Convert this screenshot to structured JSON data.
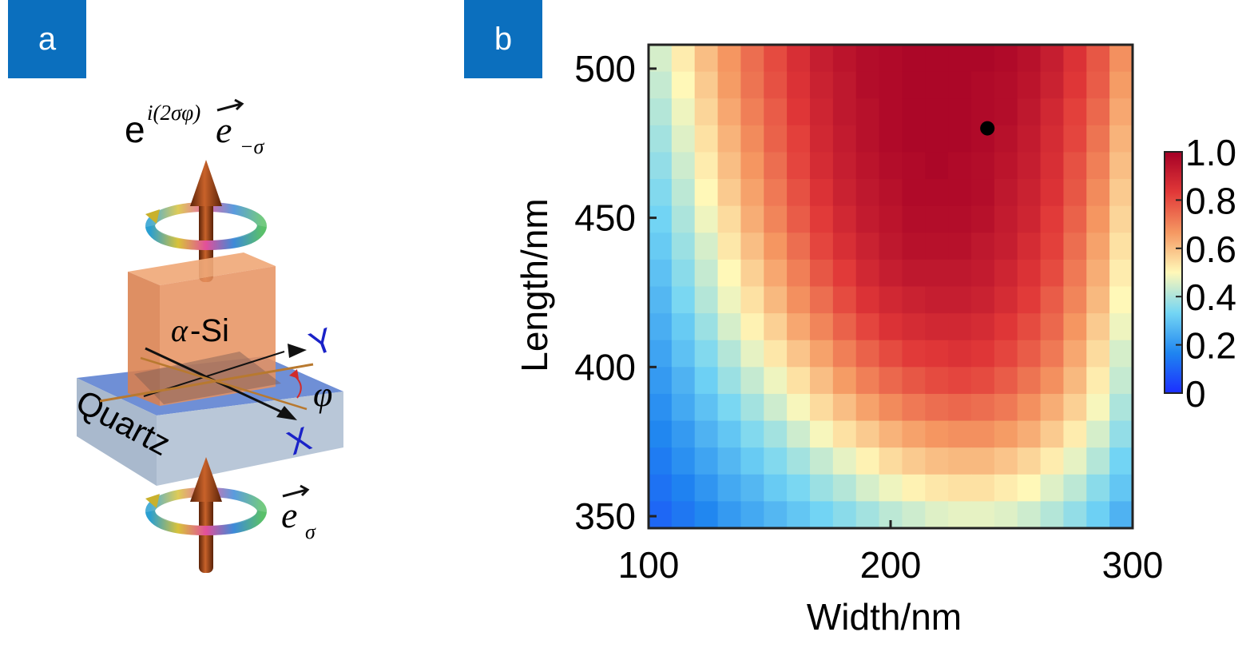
{
  "panels": {
    "a": {
      "label": "a"
    },
    "b": {
      "label": "b"
    }
  },
  "diagram": {
    "output_field_base": "e",
    "output_field_exponent": "i(2σφ)",
    "output_field_vector": "e",
    "output_field_subscript": "−σ",
    "input_field_vector": "e",
    "input_field_subscript": "σ",
    "pillar_label_greek": "α",
    "pillar_label_text": "-Si",
    "substrate_label": "Quartz",
    "axis_y_label": "Y",
    "axis_x_label": "X",
    "angle_label": "φ",
    "colors": {
      "pillar": "#e6915f",
      "substrate_top": "#6f8fd6",
      "substrate_side": "#a9b9cd",
      "arrow": "#8b3d16",
      "axes": "#1a22c8"
    }
  },
  "chart_data": {
    "type": "heatmap",
    "xlabel": "Width/nm",
    "ylabel": "Length/nm",
    "xlim": [
      100,
      300
    ],
    "ylim": [
      346,
      508
    ],
    "xticks": [
      100,
      200,
      300
    ],
    "yticks": [
      350,
      400,
      450,
      500
    ],
    "x_step": 10,
    "y_step": 10,
    "colorbar": {
      "min": 0,
      "max": 1.0,
      "ticks": [
        "0",
        "0.2",
        "0.4",
        "0.6",
        "0.8",
        "1.0"
      ],
      "position": "right"
    },
    "colormap": [
      "#1c2eff",
      "#1f85f0",
      "#74d6f4",
      "#fff8b8",
      "#f59862",
      "#e13838",
      "#a50026"
    ],
    "marker": {
      "x": 240,
      "y": 480
    },
    "rows_from_top": [
      [
        0.45,
        0.52,
        0.6,
        0.67,
        0.74,
        0.8,
        0.86,
        0.91,
        0.94,
        0.96,
        0.97,
        0.98,
        0.98,
        0.98,
        0.98,
        0.97,
        0.95,
        0.91,
        0.85,
        0.78,
        0.68
      ],
      [
        0.43,
        0.5,
        0.58,
        0.66,
        0.73,
        0.79,
        0.85,
        0.9,
        0.93,
        0.96,
        0.97,
        0.98,
        0.98,
        0.98,
        0.97,
        0.96,
        0.94,
        0.9,
        0.84,
        0.77,
        0.66
      ],
      [
        0.41,
        0.48,
        0.56,
        0.64,
        0.71,
        0.77,
        0.84,
        0.89,
        0.93,
        0.95,
        0.97,
        0.98,
        0.98,
        0.98,
        0.97,
        0.96,
        0.93,
        0.88,
        0.82,
        0.75,
        0.64
      ],
      [
        0.39,
        0.46,
        0.54,
        0.62,
        0.69,
        0.76,
        0.82,
        0.88,
        0.92,
        0.95,
        0.97,
        0.98,
        0.98,
        0.98,
        0.97,
        0.95,
        0.92,
        0.87,
        0.81,
        0.73,
        0.62
      ],
      [
        0.37,
        0.44,
        0.52,
        0.6,
        0.67,
        0.74,
        0.81,
        0.87,
        0.91,
        0.94,
        0.96,
        0.97,
        0.98,
        0.97,
        0.96,
        0.94,
        0.91,
        0.86,
        0.79,
        0.71,
        0.6
      ],
      [
        0.35,
        0.42,
        0.5,
        0.58,
        0.65,
        0.72,
        0.79,
        0.85,
        0.9,
        0.93,
        0.95,
        0.97,
        0.97,
        0.97,
        0.96,
        0.93,
        0.9,
        0.85,
        0.78,
        0.69,
        0.58
      ],
      [
        0.33,
        0.4,
        0.48,
        0.55,
        0.63,
        0.7,
        0.77,
        0.83,
        0.88,
        0.92,
        0.94,
        0.96,
        0.96,
        0.96,
        0.95,
        0.92,
        0.89,
        0.83,
        0.76,
        0.67,
        0.56
      ],
      [
        0.31,
        0.38,
        0.45,
        0.53,
        0.6,
        0.67,
        0.74,
        0.81,
        0.86,
        0.9,
        0.93,
        0.95,
        0.95,
        0.95,
        0.93,
        0.91,
        0.87,
        0.82,
        0.74,
        0.65,
        0.54
      ],
      [
        0.29,
        0.36,
        0.43,
        0.5,
        0.57,
        0.64,
        0.71,
        0.78,
        0.83,
        0.88,
        0.91,
        0.93,
        0.93,
        0.93,
        0.92,
        0.89,
        0.85,
        0.8,
        0.72,
        0.63,
        0.52
      ],
      [
        0.27,
        0.34,
        0.41,
        0.48,
        0.54,
        0.61,
        0.68,
        0.74,
        0.8,
        0.85,
        0.88,
        0.9,
        0.91,
        0.91,
        0.9,
        0.87,
        0.83,
        0.77,
        0.7,
        0.61,
        0.5
      ],
      [
        0.25,
        0.31,
        0.38,
        0.45,
        0.51,
        0.57,
        0.64,
        0.7,
        0.76,
        0.81,
        0.85,
        0.87,
        0.88,
        0.88,
        0.87,
        0.84,
        0.8,
        0.75,
        0.67,
        0.58,
        0.48
      ],
      [
        0.23,
        0.29,
        0.35,
        0.41,
        0.47,
        0.53,
        0.59,
        0.65,
        0.71,
        0.76,
        0.8,
        0.83,
        0.84,
        0.85,
        0.84,
        0.81,
        0.77,
        0.72,
        0.64,
        0.55,
        0.45
      ],
      [
        0.21,
        0.26,
        0.32,
        0.38,
        0.43,
        0.48,
        0.54,
        0.6,
        0.66,
        0.71,
        0.75,
        0.78,
        0.8,
        0.81,
        0.8,
        0.77,
        0.73,
        0.68,
        0.61,
        0.52,
        0.43
      ],
      [
        0.19,
        0.24,
        0.29,
        0.34,
        0.39,
        0.44,
        0.49,
        0.55,
        0.6,
        0.65,
        0.69,
        0.72,
        0.74,
        0.75,
        0.74,
        0.72,
        0.68,
        0.63,
        0.57,
        0.49,
        0.4
      ],
      [
        0.17,
        0.21,
        0.26,
        0.3,
        0.35,
        0.39,
        0.44,
        0.49,
        0.54,
        0.58,
        0.62,
        0.65,
        0.67,
        0.68,
        0.68,
        0.66,
        0.63,
        0.58,
        0.52,
        0.45,
        0.37
      ],
      [
        0.15,
        0.19,
        0.23,
        0.27,
        0.31,
        0.35,
        0.39,
        0.43,
        0.47,
        0.51,
        0.55,
        0.58,
        0.6,
        0.61,
        0.61,
        0.59,
        0.56,
        0.52,
        0.47,
        0.41,
        0.33
      ],
      [
        0.13,
        0.16,
        0.2,
        0.24,
        0.27,
        0.31,
        0.34,
        0.38,
        0.41,
        0.45,
        0.48,
        0.51,
        0.53,
        0.54,
        0.54,
        0.52,
        0.5,
        0.46,
        0.42,
        0.36,
        0.3
      ],
      [
        0.11,
        0.14,
        0.17,
        0.21,
        0.24,
        0.27,
        0.3,
        0.33,
        0.36,
        0.39,
        0.42,
        0.44,
        0.46,
        0.47,
        0.47,
        0.46,
        0.44,
        0.41,
        0.37,
        0.32,
        0.26
      ]
    ]
  }
}
